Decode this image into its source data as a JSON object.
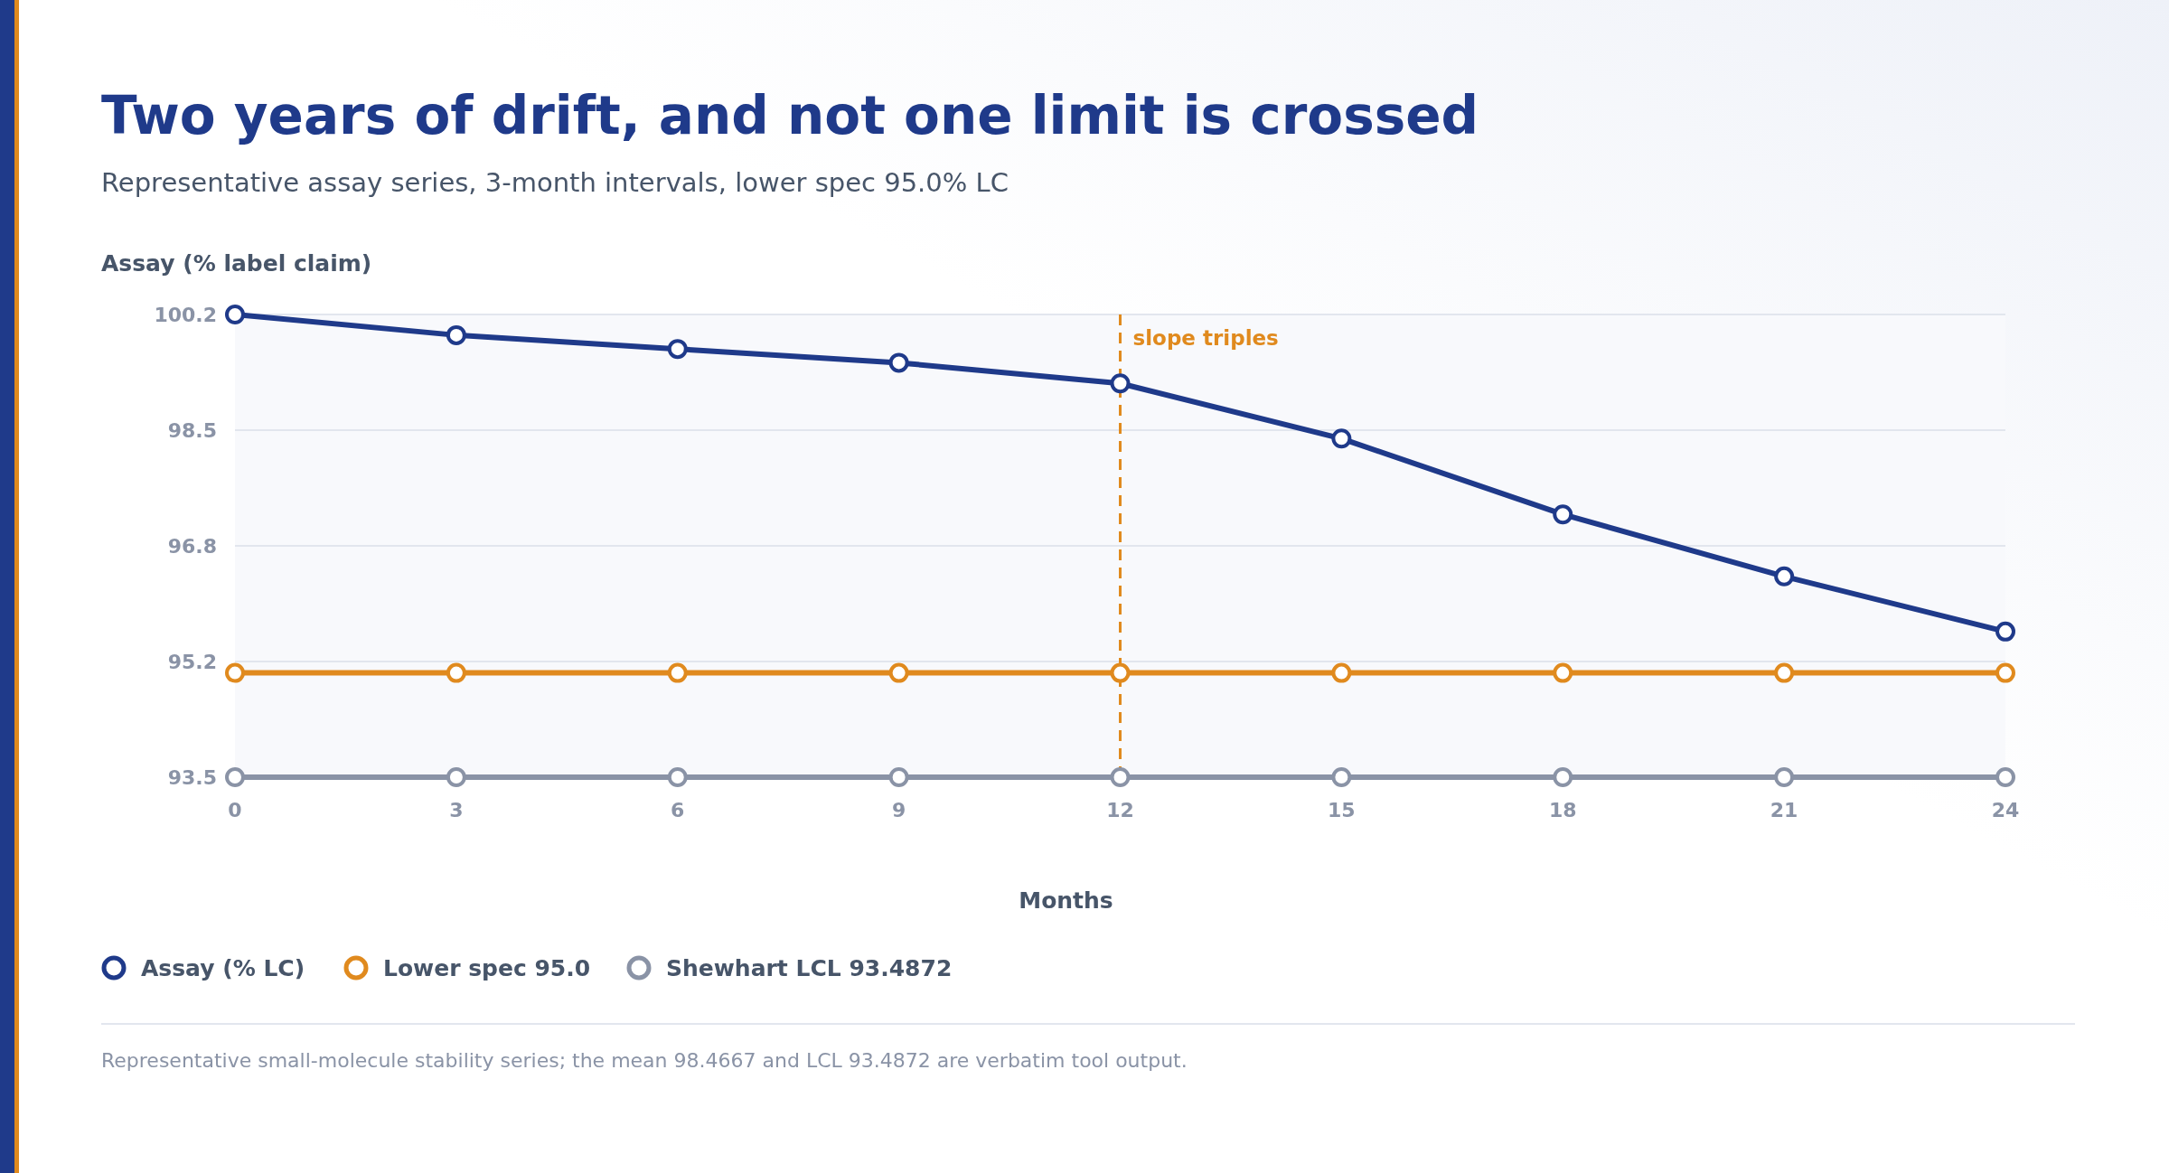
{
  "chart_data": {
    "type": "line",
    "title": "Two years of drift, and not one limit is crossed",
    "subtitle": "Representative assay series, 3-month intervals, lower spec 95.0% LC",
    "ylabel": "Assay (% label claim)",
    "xlabel": "Months",
    "x": [
      0,
      3,
      6,
      9,
      12,
      15,
      18,
      21,
      24
    ],
    "series": [
      {
        "name": "Assay (% LC)",
        "color": "#1f3a8a",
        "values": [
          100.2,
          99.9,
          99.7,
          99.5,
          99.2,
          98.4,
          97.3,
          96.4,
          95.6
        ]
      },
      {
        "name": "Lower spec 95.0",
        "color": "#e08a1e",
        "values": [
          95.0,
          95.0,
          95.0,
          95.0,
          95.0,
          95.0,
          95.0,
          95.0,
          95.0
        ]
      },
      {
        "name": "Shewhart LCL 93.4872",
        "color": "#8a93a6",
        "values": [
          93.4872,
          93.4872,
          93.4872,
          93.4872,
          93.4872,
          93.4872,
          93.4872,
          93.4872,
          93.4872
        ]
      }
    ],
    "xlim": [
      0,
      24
    ],
    "xticks": [
      0,
      3,
      6,
      9,
      12,
      15,
      18,
      21,
      24
    ],
    "ylim": [
      93.4872,
      100.2
    ],
    "yticks": [
      {
        "value": 93.4872,
        "label": "93.5"
      },
      {
        "value": 95.1654,
        "label": "95.2"
      },
      {
        "value": 96.8436,
        "label": "96.8"
      },
      {
        "value": 98.5218,
        "label": "98.5"
      },
      {
        "value": 100.2,
        "label": "100.2"
      }
    ],
    "ref_lines": [
      {
        "axis": "x",
        "value": 12,
        "label": "slope triples",
        "color": "#e08a1e",
        "line_style": "dashed"
      }
    ],
    "annotations": [
      "Representative small-molecule stability series; the mean 98.4667 and LCL 93.4872 are verbatim tool output."
    ],
    "grid": "y",
    "legend": "bottom",
    "marker": "circle",
    "line_style": "solid"
  }
}
